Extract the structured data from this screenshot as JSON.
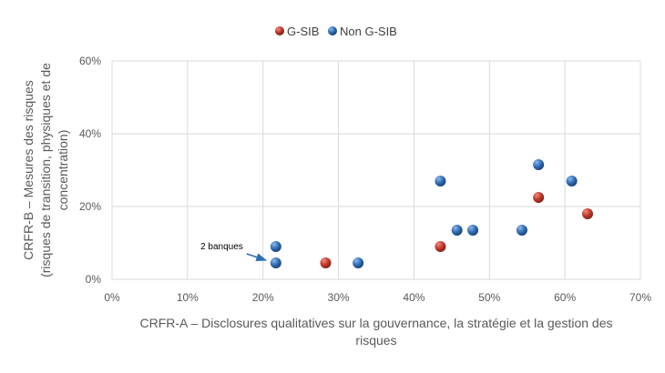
{
  "chart_data": {
    "type": "scatter",
    "title": "",
    "xlabel_lines": [
      "CRFR-A – Disclosures qualitatives sur la gouvernance, la stratégie et la gestion des",
      "risques"
    ],
    "ylabel_lines": [
      "CRFR-B – Mesures des risques",
      "(risques de transition, physiques et de",
      "concentration)"
    ],
    "xlim": [
      0,
      70
    ],
    "ylim": [
      0,
      60
    ],
    "x_ticks": [
      0,
      10,
      20,
      30,
      40,
      50,
      60,
      70
    ],
    "y_ticks": [
      0,
      20,
      40,
      60
    ],
    "x_tick_labels": [
      "0%",
      "10%",
      "20%",
      "30%",
      "40%",
      "50%",
      "60%",
      "70%"
    ],
    "y_tick_labels": [
      "0%",
      "20%",
      "40%",
      "60%"
    ],
    "grid": "vertical and horizontal major gridlines",
    "legend_position": "top-center",
    "series": [
      {
        "name": "G-SIB",
        "color": "#c0392b",
        "points": [
          [
            28.3,
            4.5
          ],
          [
            43.5,
            9
          ],
          [
            56.5,
            22.5
          ],
          [
            63,
            18
          ]
        ]
      },
      {
        "name": "Non G-SIB",
        "color": "#2e6db4",
        "points": [
          [
            21.7,
            9
          ],
          [
            21.7,
            4.5
          ],
          [
            32.6,
            4.5
          ],
          [
            43.5,
            27
          ],
          [
            45.7,
            13.5
          ],
          [
            47.8,
            13.5
          ],
          [
            54.3,
            13.5
          ],
          [
            56.5,
            31.5
          ],
          [
            60.9,
            27
          ]
        ]
      }
    ],
    "annotations": [
      {
        "text": "2 banques",
        "arrow_to": [
          21.7,
          4.5
        ]
      }
    ]
  }
}
